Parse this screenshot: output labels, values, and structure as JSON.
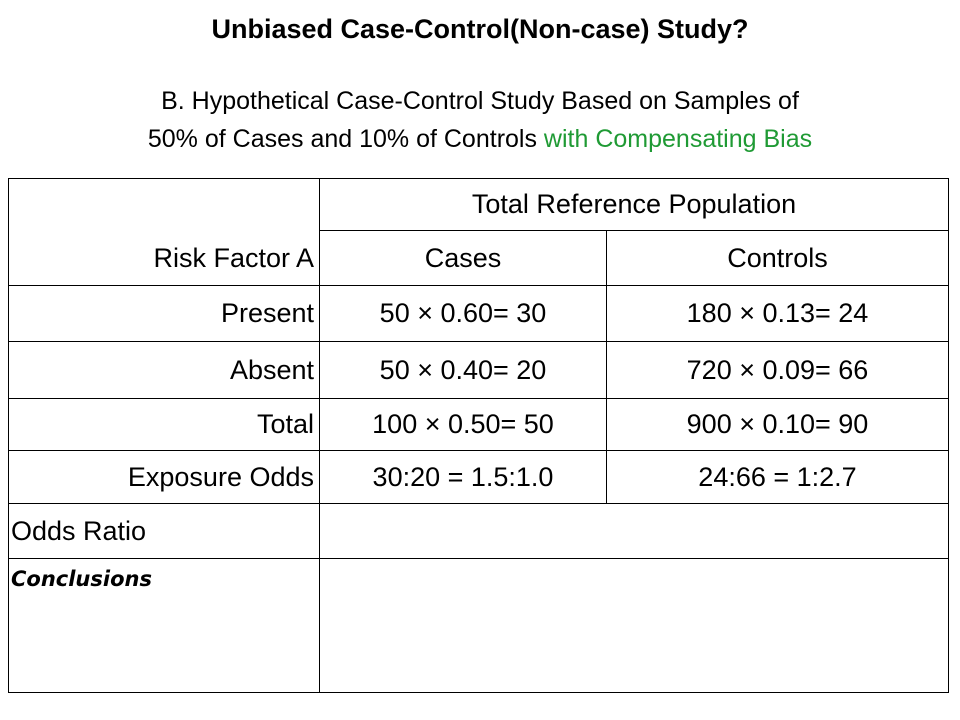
{
  "title": "Unbiased Case-Control(Non-case) Study?",
  "subtitle": {
    "line1": "B. Hypothetical Case-Control Study Based on Samples of",
    "line2_plain": "50% of Cases and 10% of Controls ",
    "line2_green": "with Compensating Bias"
  },
  "table": {
    "group_header": "Total Reference Population",
    "row_header": "Risk Factor A",
    "col_cases": "Cases",
    "col_controls": "Controls",
    "rows": [
      {
        "label": "Present",
        "cases": "50 × 0.60= 30",
        "controls": "180 × 0.13= 24"
      },
      {
        "label": "Absent",
        "cases": "50 × 0.40= 20",
        "controls": "720 × 0.09= 66"
      },
      {
        "label": "Total",
        "cases": "100 × 0.50= 50",
        "controls": "900 × 0.10= 90"
      },
      {
        "label": "Exposure Odds",
        "cases": "30:20 = 1.5:1.0",
        "controls": "24:66 = 1:2.7"
      }
    ],
    "odds_ratio_label": "Odds Ratio",
    "conclusions_label": "Conclusions"
  }
}
